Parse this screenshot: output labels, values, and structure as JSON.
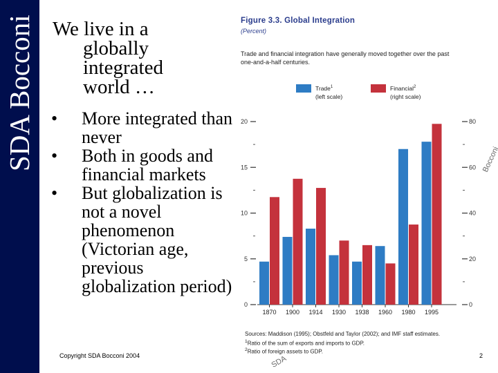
{
  "slide": {
    "brand": "SDA Bocconi",
    "title_line1": "We live in a",
    "title_line2": "globally integrated world …",
    "bullets": [
      "More integrated than never",
      "Both in goods and financial markets",
      "But globalization is not a novel phenomenon (Victorian age, previous globalization period)"
    ],
    "bullet_symbol": "•",
    "footer": "Copyright SDA Bocconi 2004",
    "page_number": "2",
    "watermark_right": "Bocconi",
    "watermark_bottom": "SDA"
  },
  "figure": {
    "title": "Figure 3.3.   Global Integration",
    "subtitle": "(Percent)",
    "description": "Trade and financial integration have generally moved together over the past one-and-a-half centuries.",
    "sources": "Sources: Maddison (1995); Obstfeld and Taylor (2002); and IMF staff estimates.",
    "note1": "Ratio of the sum of exports and imports to GDP.",
    "note2": "Ratio of foreign assets to GDP.",
    "note1_marker": "1",
    "note2_marker": "2"
  },
  "chart_data": {
    "type": "bar",
    "categories": [
      "1870",
      "1900",
      "1914",
      "1930",
      "1938",
      "1960",
      "1980",
      "1995"
    ],
    "series": [
      {
        "name": "Trade",
        "axis": "left",
        "sup": "1",
        "scale_note": "(left scale)",
        "color": "#2e7cc4",
        "values": [
          4.7,
          7.4,
          8.3,
          5.4,
          4.7,
          6.4,
          17.0,
          17.8
        ]
      },
      {
        "name": "Financial",
        "axis": "right",
        "sup": "2",
        "scale_note": "(right scale)",
        "color": "#c4323c",
        "values": [
          47,
          55,
          51,
          28,
          26,
          18,
          35,
          79
        ]
      }
    ],
    "left_axis": {
      "ylim": [
        0,
        20
      ],
      "ticks": [
        "0",
        "5",
        "10",
        "15",
        "20"
      ]
    },
    "right_axis": {
      "ylim": [
        0,
        80
      ],
      "ticks": [
        "0",
        "20",
        "40",
        "60",
        "80"
      ]
    },
    "legend_position": "top",
    "grid": false
  }
}
